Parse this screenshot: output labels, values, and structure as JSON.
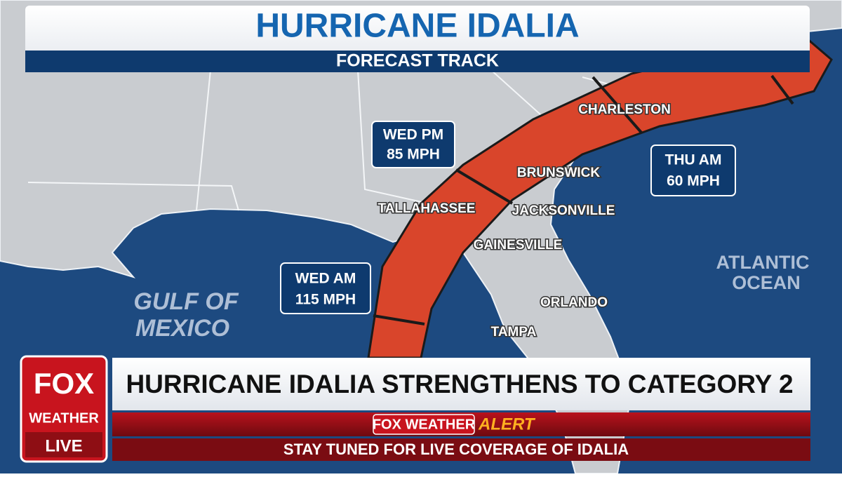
{
  "header": {
    "title": "HURRICANE IDALIA",
    "subtitle": "FORECAST TRACK"
  },
  "map": {
    "water": [
      "GULF OF",
      "MEXICO",
      "ATLANTIC",
      "OCEAN"
    ],
    "places": [
      "CHARLESTON",
      "BRUNSWICK",
      "TALLAHASSEE",
      "JACKSONVILLE",
      "GAINESVILLE",
      "ORLANDO",
      "TAMPA"
    ],
    "forecasts": [
      {
        "time": "WED PM",
        "wind": "85 MPH"
      },
      {
        "time": "THU AM",
        "wind": "60 MPH"
      },
      {
        "time": "WED AM",
        "wind": "115 MPH"
      }
    ]
  },
  "lower_third": {
    "logo": [
      "FOX",
      "WEATHER"
    ],
    "live": "LIVE",
    "headline": "HURRICANE IDALIA STRENGTHENS TO CATEGORY 2",
    "alert_brand": "FOX WEATHER",
    "alert": "ALERT",
    "ticker": "STAY TUNED FOR LIVE COVERAGE OF IDALIA"
  }
}
